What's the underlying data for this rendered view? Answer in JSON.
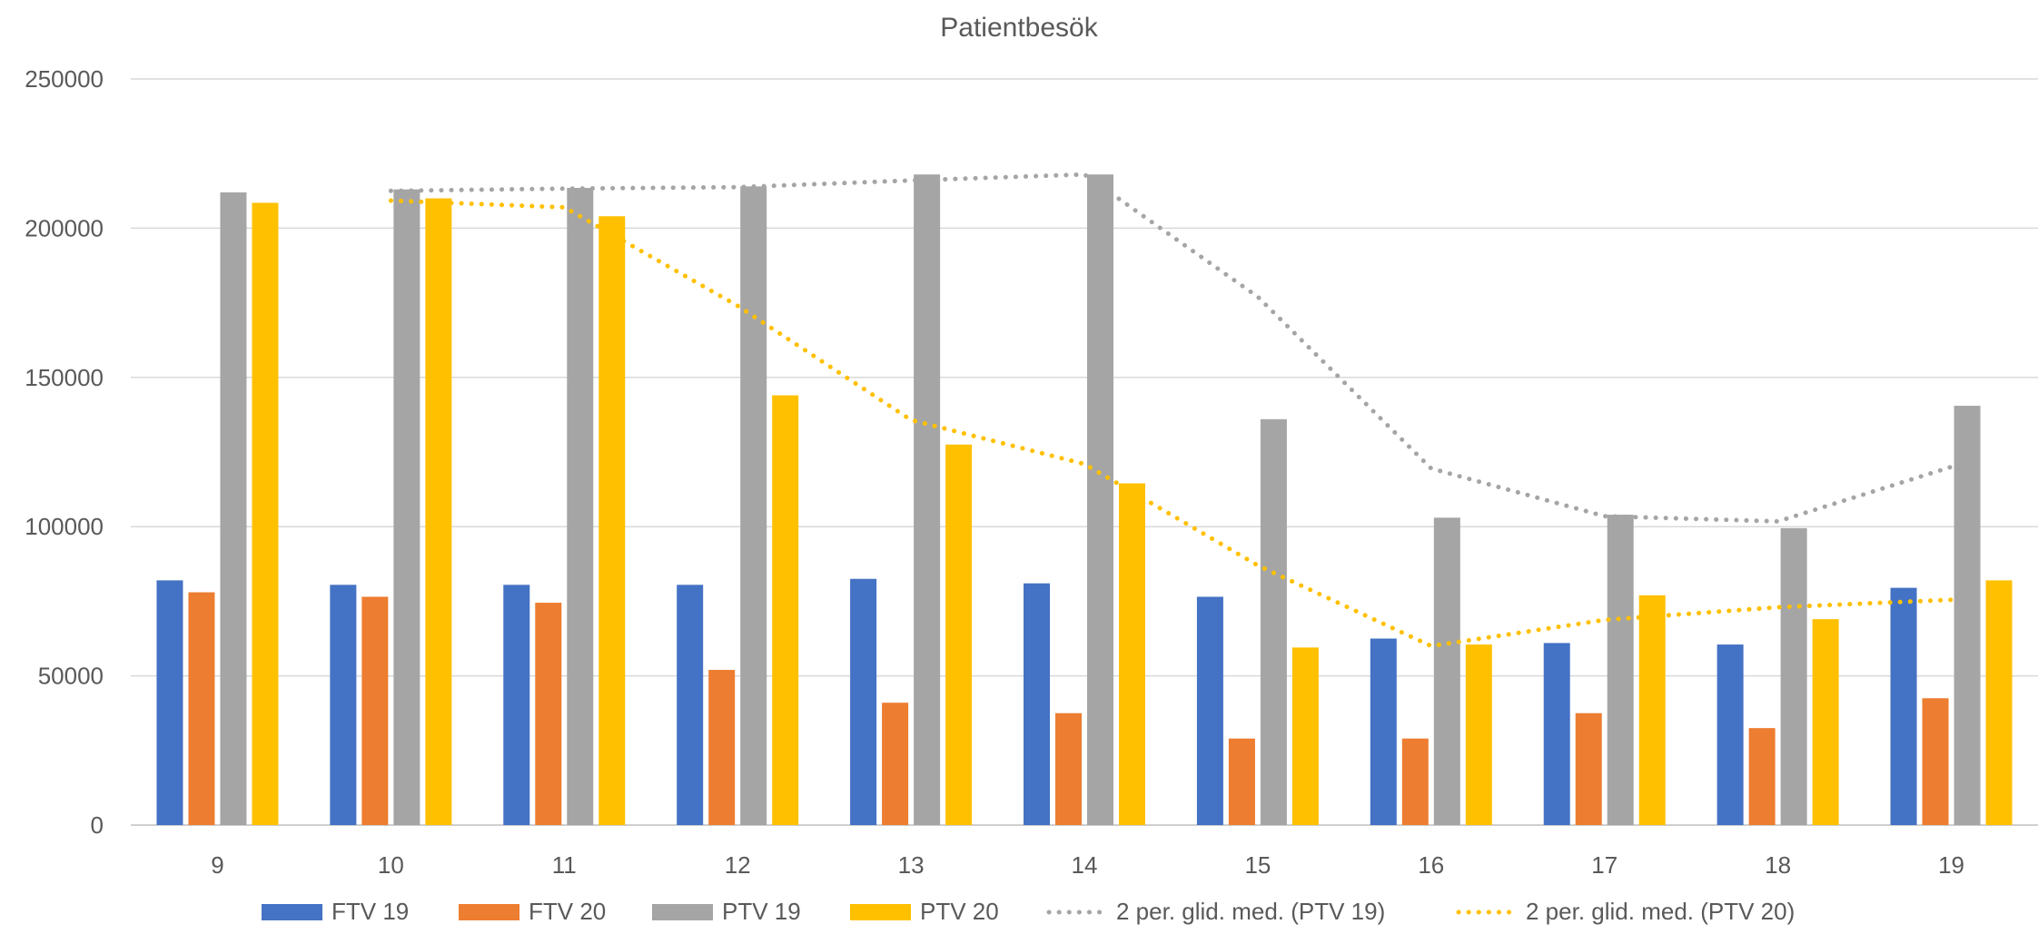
{
  "chart_data": {
    "type": "bar",
    "title": "Patientbesök",
    "xlabel": "",
    "ylabel": "",
    "ylim": [
      0,
      250000
    ],
    "yticks": [
      0,
      50000,
      100000,
      150000,
      200000,
      250000
    ],
    "grid": true,
    "legend_position": "bottom",
    "categories": [
      "9",
      "10",
      "11",
      "12",
      "13",
      "14",
      "15",
      "16",
      "17",
      "18",
      "19"
    ],
    "series": [
      {
        "name": "FTV 19",
        "color": "#4472C4",
        "values": [
          82000,
          80500,
          80500,
          80500,
          82500,
          81000,
          76500,
          62500,
          61000,
          60500,
          79500
        ]
      },
      {
        "name": "FTV 20",
        "color": "#ED7D31",
        "values": [
          78000,
          76500,
          74500,
          52000,
          41000,
          37500,
          29000,
          29000,
          37500,
          32500,
          42500
        ]
      },
      {
        "name": "PTV 19",
        "color": "#A5A5A5",
        "values": [
          212000,
          213000,
          213500,
          214000,
          218000,
          218000,
          136000,
          103000,
          104000,
          99500,
          140500
        ]
      },
      {
        "name": "PTV 20",
        "color": "#FFC000",
        "values": [
          208500,
          210000,
          204000,
          144000,
          127500,
          114500,
          59500,
          60500,
          77000,
          69000,
          82000
        ]
      }
    ],
    "trendlines": [
      {
        "name": "2 per. glid. med. (PTV 19)",
        "color": "#A5A5A5",
        "style": "dotted",
        "start_index": 1,
        "values": [
          212500,
          213250,
          213750,
          216000,
          218000,
          177000,
          119500,
          103500,
          101750,
          120000
        ]
      },
      {
        "name": "2 per. glid. med. (PTV 20)",
        "color": "#FFC000",
        "style": "dotted",
        "start_index": 1,
        "values": [
          209250,
          207000,
          174000,
          135750,
          121000,
          87000,
          60000,
          68750,
          73000,
          75500
        ]
      }
    ]
  }
}
